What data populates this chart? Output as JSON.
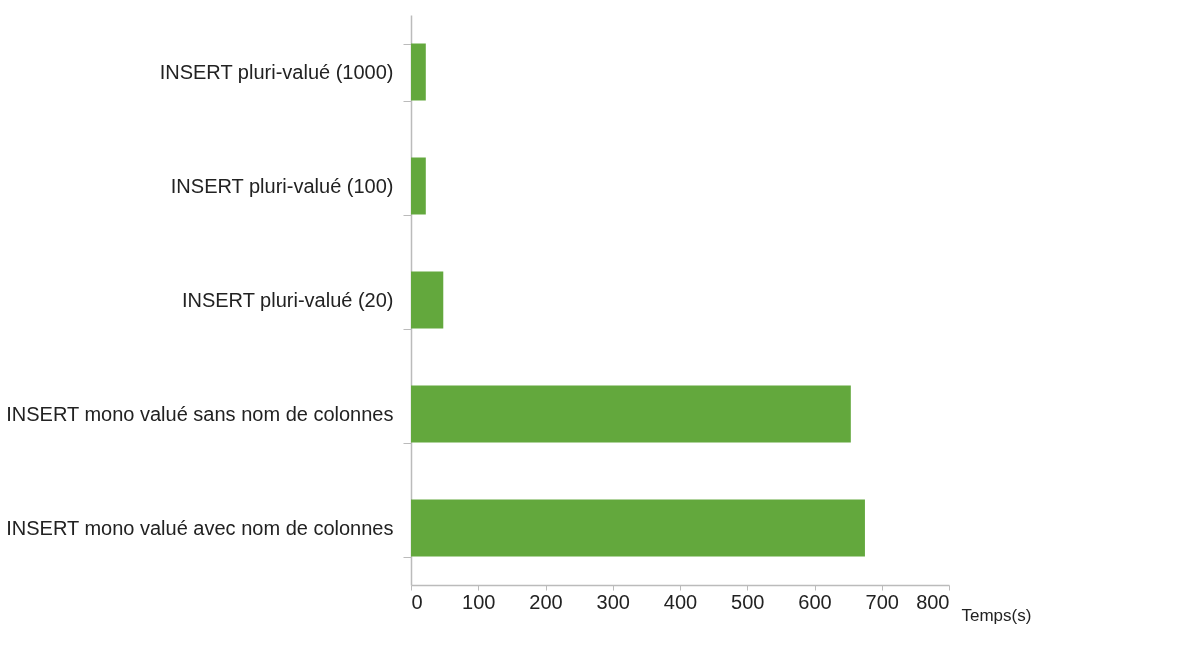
{
  "chart_data": {
    "type": "bar",
    "orientation": "horizontal",
    "xlabel": "Temps(s)",
    "categories": [
      "INSERT pluri-valué (1000)",
      "INSERT pluri-valué (100)",
      "INSERT pluri-valué (20)",
      "INSERT mono valué sans nom de colonnes",
      "INSERT mono valué avec nom de colonnes"
    ],
    "values": [
      22,
      22,
      48,
      654,
      675
    ],
    "color": "#63a83d",
    "xlim": [
      0,
      800
    ],
    "xticks": [
      0,
      100,
      200,
      300,
      400,
      500,
      600,
      700,
      800
    ],
    "grid": false
  }
}
